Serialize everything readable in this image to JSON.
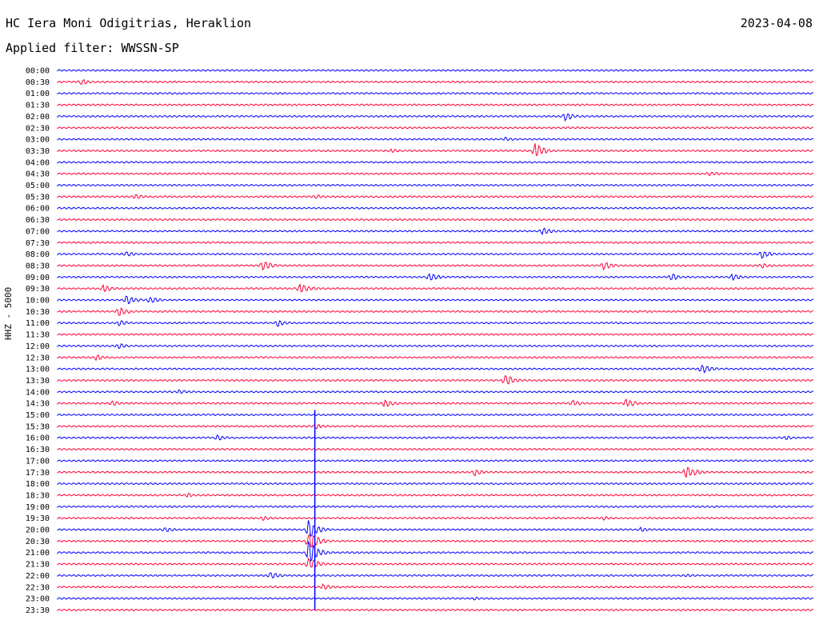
{
  "header": {
    "title": "HC Iera Moni Odigitrias, Heraklion",
    "date": "2023-04-08",
    "filter": "Applied filter: WWSSN-SP"
  },
  "chart_data": {
    "type": "line",
    "title": "HC Iera Moni Odigitrias, Heraklion",
    "ylabel": "HHZ - 5000",
    "xlabel": "",
    "colors": {
      "even_rows": "#0000ff",
      "odd_rows": "#ff0033"
    },
    "row_labels": [
      "00:00",
      "00:30",
      "01:00",
      "01:30",
      "02:00",
      "02:30",
      "03:00",
      "03:30",
      "04:00",
      "04:30",
      "05:00",
      "05:30",
      "06:00",
      "06:30",
      "07:00",
      "07:30",
      "08:00",
      "08:30",
      "09:00",
      "09:30",
      "10:00",
      "10:30",
      "11:00",
      "11:30",
      "12:00",
      "12:30",
      "13:00",
      "13:30",
      "14:00",
      "14:30",
      "15:00",
      "15:30",
      "16:00",
      "16:30",
      "17:00",
      "17:30",
      "18:00",
      "18:30",
      "19:00",
      "19:30",
      "20:00",
      "20:30",
      "21:00",
      "21:30",
      "22:00",
      "22:30",
      "23:00",
      "23:30"
    ],
    "events": [
      {
        "row": 1,
        "x": 0.03,
        "amp": 4
      },
      {
        "row": 4,
        "x": 0.67,
        "amp": 6
      },
      {
        "row": 6,
        "x": 0.59,
        "amp": 3
      },
      {
        "row": 7,
        "x": 0.63,
        "amp": 10
      },
      {
        "row": 7,
        "x": 0.44,
        "amp": 3
      },
      {
        "row": 9,
        "x": 0.86,
        "amp": 4
      },
      {
        "row": 11,
        "x": 0.1,
        "amp": 4
      },
      {
        "row": 11,
        "x": 0.34,
        "amp": 3
      },
      {
        "row": 14,
        "x": 0.64,
        "amp": 5
      },
      {
        "row": 16,
        "x": 0.93,
        "amp": 6
      },
      {
        "row": 16,
        "x": 0.09,
        "amp": 4
      },
      {
        "row": 17,
        "x": 0.27,
        "amp": 8
      },
      {
        "row": 17,
        "x": 0.72,
        "amp": 6
      },
      {
        "row": 17,
        "x": 0.93,
        "amp": 4
      },
      {
        "row": 18,
        "x": 0.49,
        "amp": 6
      },
      {
        "row": 18,
        "x": 0.81,
        "amp": 5
      },
      {
        "row": 18,
        "x": 0.89,
        "amp": 5
      },
      {
        "row": 19,
        "x": 0.32,
        "amp": 7
      },
      {
        "row": 19,
        "x": 0.06,
        "amp": 5
      },
      {
        "row": 20,
        "x": 0.09,
        "amp": 6
      },
      {
        "row": 20,
        "x": 0.12,
        "amp": 5
      },
      {
        "row": 21,
        "x": 0.08,
        "amp": 6
      },
      {
        "row": 22,
        "x": 0.29,
        "amp": 5
      },
      {
        "row": 22,
        "x": 0.08,
        "amp": 4
      },
      {
        "row": 24,
        "x": 0.08,
        "amp": 4
      },
      {
        "row": 25,
        "x": 0.05,
        "amp": 4
      },
      {
        "row": 26,
        "x": 0.85,
        "amp": 7
      },
      {
        "row": 27,
        "x": 0.59,
        "amp": 8
      },
      {
        "row": 28,
        "x": 0.16,
        "amp": 3
      },
      {
        "row": 29,
        "x": 0.43,
        "amp": 6
      },
      {
        "row": 29,
        "x": 0.75,
        "amp": 6
      },
      {
        "row": 29,
        "x": 0.07,
        "amp": 4
      },
      {
        "row": 29,
        "x": 0.68,
        "amp": 4
      },
      {
        "row": 31,
        "x": 0.34,
        "amp": 4
      },
      {
        "row": 32,
        "x": 0.21,
        "amp": 4
      },
      {
        "row": 32,
        "x": 0.96,
        "amp": 3
      },
      {
        "row": 35,
        "x": 0.55,
        "amp": 5
      },
      {
        "row": 35,
        "x": 0.83,
        "amp": 9
      },
      {
        "row": 37,
        "x": 0.17,
        "amp": 3
      },
      {
        "row": 39,
        "x": 0.27,
        "amp": 3
      },
      {
        "row": 39,
        "x": 0.72,
        "amp": 3
      },
      {
        "row": 40,
        "x": 0.33,
        "amp": 14
      },
      {
        "row": 40,
        "x": 0.14,
        "amp": 4
      },
      {
        "row": 40,
        "x": 0.77,
        "amp": 3
      },
      {
        "row": 41,
        "x": 0.33,
        "amp": 14
      },
      {
        "row": 42,
        "x": 0.33,
        "amp": 16
      },
      {
        "row": 43,
        "x": 0.33,
        "amp": 10
      },
      {
        "row": 44,
        "x": 0.28,
        "amp": 5
      },
      {
        "row": 44,
        "x": 0.83,
        "amp": 2
      },
      {
        "row": 45,
        "x": 0.35,
        "amp": 4
      },
      {
        "row": 46,
        "x": 0.55,
        "amp": 2
      }
    ],
    "big_spike": {
      "row_start": 30,
      "row_end": 47,
      "x": 0.34
    }
  }
}
